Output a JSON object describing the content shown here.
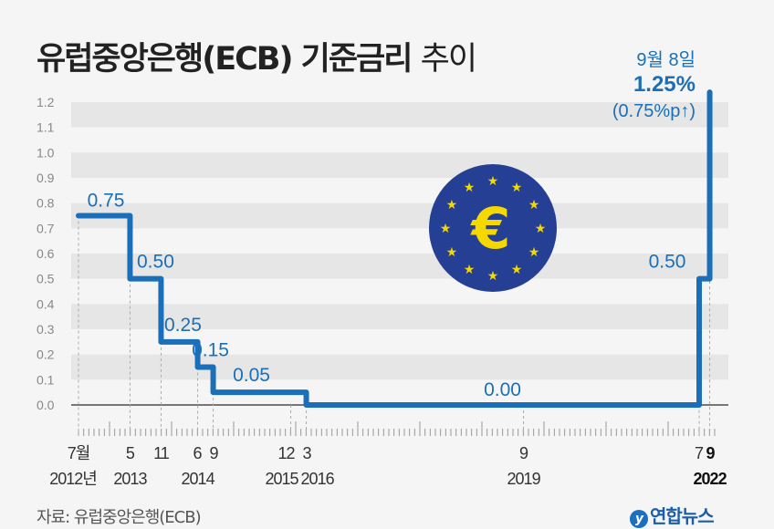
{
  "title": {
    "main": "유럽중앙은행(ECB) 기준금리",
    "suffix": "추이"
  },
  "source": "자료: 유럽중앙은행(ECB)",
  "logo": "연합뉴스",
  "colors": {
    "line": "#1a6fb8",
    "label": "#1a6fb8",
    "band": "#e6e6e6",
    "background": "#f5f5f5",
    "euro_bg": "#243f94",
    "euro_fg": "#f5d800"
  },
  "chart_data": {
    "type": "line",
    "step": true,
    "title": "유럽중앙은행(ECB) 기준금리 추이",
    "ylim": [
      0,
      1.2
    ],
    "yticks": [
      "0.0",
      "0.1",
      "0.2",
      "0.3",
      "0.4",
      "0.5",
      "0.6",
      "0.7",
      "0.8",
      "0.9",
      "1.0",
      "1.1",
      "1.2"
    ],
    "points": [
      {
        "t": 2012.5,
        "value": 0.75,
        "label": "0.75"
      },
      {
        "t": 2013.33,
        "value": 0.5,
        "label": "0.50"
      },
      {
        "t": 2013.83,
        "value": 0.25,
        "label": "0.25"
      },
      {
        "t": 2014.42,
        "value": 0.15,
        "label": "0.15"
      },
      {
        "t": 2014.67,
        "value": 0.05,
        "label": "0.05"
      },
      {
        "t": 2016.17,
        "value": 0.0,
        "label": "0.00"
      },
      {
        "t": 2022.5,
        "value": 0.5,
        "label": "0.50"
      },
      {
        "t": 2022.67,
        "value": 1.25,
        "label": "1.25%"
      }
    ],
    "xlabels": [
      {
        "t": 2012.5,
        "month": "7월",
        "year": "2012년"
      },
      {
        "t": 2013.33,
        "month": "5",
        "year": "2013"
      },
      {
        "t": 2013.83,
        "month": "11",
        "year": ""
      },
      {
        "t": 2014.42,
        "month": "6",
        "year": "2014"
      },
      {
        "t": 2014.67,
        "month": "9",
        "year": ""
      },
      {
        "t": 2015.92,
        "month": "12",
        "year": "2015"
      },
      {
        "t": 2016.17,
        "month": "3",
        "year": "2016"
      },
      {
        "t": 2019.67,
        "month": "9",
        "year": "2019"
      },
      {
        "t": 2022.5,
        "month": "7",
        "year": ""
      },
      {
        "t": 2022.67,
        "month": "9",
        "year": "2022"
      }
    ],
    "annotation": {
      "date": "9월 8일",
      "value": "1.25%",
      "change": "(0.75%p↑)"
    }
  }
}
